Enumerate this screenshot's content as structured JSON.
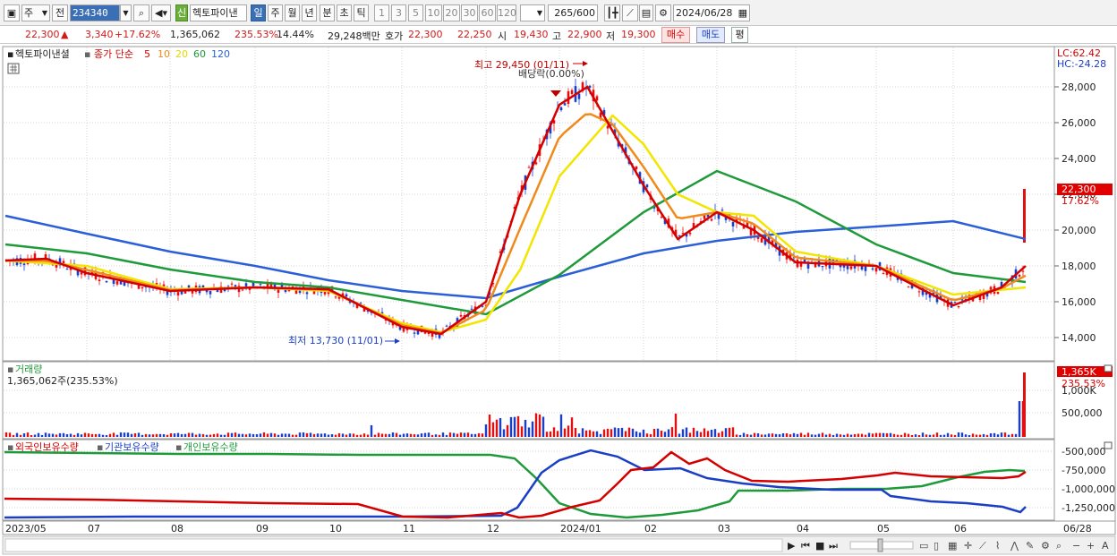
{
  "toolbar": {
    "period_type": "주",
    "prev_label": "전",
    "stock_code": "234340",
    "badge_new": "신",
    "stock_name": "헥토파이낸",
    "period_tabs": [
      "일",
      "주",
      "월",
      "년",
      "분",
      "초",
      "틱"
    ],
    "active_period": "일",
    "interval_buttons": [
      "1",
      "3",
      "5",
      "10",
      "20",
      "30",
      "60",
      "120"
    ],
    "count_display": "265",
    "count_total": "/600",
    "date": "2024/06/28"
  },
  "quote": {
    "price": "22,300",
    "change_arrow": "▲",
    "change": "3,340",
    "change_pct": "+17.62%",
    "volume": "1,365,062",
    "volume_pct": "235.53%",
    "turnover": "14.44%",
    "amount": "29,248백만",
    "ask_label": "호가",
    "ask": "22,300",
    "bid": "22,250",
    "open_label": "시",
    "open": "19,430",
    "high_label": "고",
    "high": "22,900",
    "low_label": "저",
    "low": "19,300",
    "buy_label": "매수",
    "sell_label": "매도",
    "avg_label": "평"
  },
  "price_panel": {
    "legend_name": "헥토파이낸셜",
    "legend_ma_label": "종가 단순",
    "legend_ma_periods": [
      "5",
      "10",
      "20",
      "60",
      "120"
    ],
    "legend_ma_colors": [
      "#d40000",
      "#f08a1c",
      "#f2e600",
      "#1f9a3a",
      "#2a5fd8"
    ],
    "lc_label": "LC:62.42",
    "hc_label": "HC:-24.28",
    "high_annotation": "최고 29,450 (01/11)",
    "dividend_annotation": "배당락(0.00%)",
    "low_annotation": "최저 13,730 (11/01)",
    "current_price_tag": "22,300",
    "current_pct_tag": "17.62%",
    "y_ticks": [
      "28,000",
      "26,000",
      "24,000",
      "22,000",
      "20,000",
      "18,000",
      "16,000",
      "14,000"
    ]
  },
  "volume_panel": {
    "title": "거래량",
    "value_label": "1,365,062주(235.53%)",
    "tag": "1,365K",
    "tag_pct": "235.53%",
    "y_ticks": [
      "1,000K",
      "500,000"
    ]
  },
  "holdings_panel": {
    "legend": [
      "외국인보유수량",
      "기관보유수량",
      "개인보유수량"
    ],
    "legend_colors": [
      "#d40000",
      "#1a3fc4",
      "#1f9a3a"
    ],
    "y_ticks": [
      "-500,000",
      "-750,000",
      "-1,000,000",
      "-1,250,000"
    ]
  },
  "x_axis": {
    "labels": [
      "2023/05",
      "07",
      "08",
      "09",
      "10",
      "11",
      "12",
      "2024/01",
      "02",
      "03",
      "04",
      "05",
      "06",
      "06/28"
    ]
  },
  "chart_data": {
    "type": "line",
    "title": "헥토파이낸셜",
    "x_range": [
      "2023/05",
      "2024/06/28"
    ],
    "ylim": [
      13000,
      30000
    ],
    "series": [
      {
        "name": "5",
        "color": "#d40000",
        "x": [
          "2023/05",
          "2023/06",
          "2023/07",
          "2023/08",
          "2023/09",
          "2023/10",
          "2023/11",
          "2023/11/15",
          "2023/12",
          "2023/12/15",
          "2024/01",
          "2024/01/11",
          "2024/02",
          "2024/02/15",
          "2024/03",
          "2024/03/15",
          "2024/04",
          "2024/05",
          "2024/06",
          "2024/06/20",
          "2024/06/28"
        ],
        "values": [
          18300,
          18400,
          17600,
          16600,
          16800,
          16700,
          14600,
          14200,
          16000,
          22000,
          27000,
          28000,
          22500,
          19500,
          21000,
          20000,
          18200,
          18000,
          15800,
          16800,
          18000
        ]
      },
      {
        "name": "20",
        "color": "#f2e600",
        "x": [
          "2023/05",
          "2023/07",
          "2023/08",
          "2023/09",
          "2023/10",
          "2023/11",
          "2023/11/15",
          "2023/12",
          "2023/12/15",
          "2024/01",
          "2024/01/20",
          "2024/02",
          "2024/02/15",
          "2024/03",
          "2024/03/15",
          "2024/04",
          "2024/05",
          "2024/06",
          "2024/06/28"
        ],
        "values": [
          18300,
          18000,
          16700,
          16800,
          16600,
          14800,
          14300,
          15000,
          17800,
          23000,
          26400,
          24800,
          22000,
          21000,
          20800,
          18800,
          18000,
          16400,
          16800
        ]
      },
      {
        "name": "60",
        "color": "#1f9a3a",
        "x": [
          "2023/05",
          "2023/07",
          "2023/08",
          "2023/09",
          "2023/10",
          "2023/11",
          "2023/12",
          "2024/01",
          "2024/02",
          "2024/03",
          "2024/04",
          "2024/05",
          "2024/06",
          "2024/06/28"
        ],
        "values": [
          19200,
          18700,
          17800,
          17100,
          16800,
          16100,
          15300,
          17500,
          21000,
          23300,
          21600,
          19200,
          17600,
          17100
        ]
      },
      {
        "name": "120",
        "color": "#2a5fd8",
        "x": [
          "2023/05",
          "2023/07",
          "2023/08",
          "2023/09",
          "2023/10",
          "2023/11",
          "2023/12",
          "2024/01",
          "2024/02",
          "2024/03",
          "2024/04",
          "2024/05",
          "2024/06",
          "2024/06/28"
        ],
        "values": [
          20800,
          19800,
          18800,
          18000,
          17200,
          16600,
          16200,
          17400,
          18700,
          19400,
          19900,
          20200,
          20500,
          19500
        ]
      }
    ]
  }
}
